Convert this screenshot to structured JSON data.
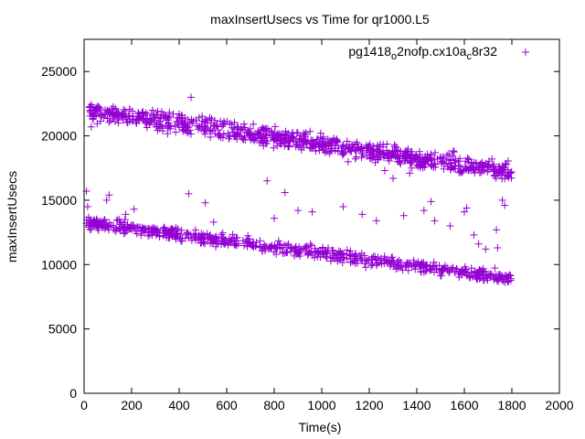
{
  "chart_data": {
    "type": "scatter",
    "title": "maxInsertUsecs vs Time for qr1000.L5",
    "xlabel": "Time(s)",
    "ylabel": "maxInsertUsecs",
    "xlim": [
      0,
      2000
    ],
    "ylim": [
      0,
      27500
    ],
    "xticks": [
      0,
      200,
      400,
      600,
      800,
      1000,
      1200,
      1400,
      1600,
      1800,
      2000
    ],
    "yticks": [
      0,
      5000,
      10000,
      15000,
      20000,
      25000
    ],
    "grid": false,
    "legend": "top-right",
    "marker": "plus",
    "series": [
      {
        "name_main": "pg1418",
        "name_sub1": "o",
        "name_mid": "2nofp.cx10a",
        "name_sub2": "c",
        "name_end": "8r32",
        "color": "#9400d3",
        "clusters": [
          {
            "description_level": "upper band",
            "x_start": 20,
            "x_end": 1800,
            "y_start": 22000,
            "y_end": 17200,
            "spread": 700,
            "count": 900
          },
          {
            "description_level": "lower band",
            "x_start": 0,
            "x_end": 1800,
            "y_start": 13300,
            "y_end": 8900,
            "spread": 450,
            "count": 700
          }
        ],
        "outliers": [
          [
            10,
            15700
          ],
          [
            15,
            14500
          ],
          [
            30,
            20700
          ],
          [
            95,
            15000
          ],
          [
            105,
            15400
          ],
          [
            175,
            13900
          ],
          [
            210,
            14300
          ],
          [
            440,
            15500
          ],
          [
            450,
            23000
          ],
          [
            470,
            12400
          ],
          [
            510,
            14800
          ],
          [
            545,
            13300
          ],
          [
            770,
            16500
          ],
          [
            800,
            13600
          ],
          [
            845,
            15600
          ],
          [
            900,
            14200
          ],
          [
            960,
            14100
          ],
          [
            1090,
            14500
          ],
          [
            1170,
            13900
          ],
          [
            1230,
            13400
          ],
          [
            1265,
            17300
          ],
          [
            1300,
            16700
          ],
          [
            1345,
            13800
          ],
          [
            1370,
            17100
          ],
          [
            1430,
            14200
          ],
          [
            1460,
            14900
          ],
          [
            1475,
            13400
          ],
          [
            1540,
            13000
          ],
          [
            1600,
            14100
          ],
          [
            1610,
            14400
          ],
          [
            1640,
            12300
          ],
          [
            1660,
            11600
          ],
          [
            1690,
            11200
          ],
          [
            1735,
            12700
          ],
          [
            1740,
            11300
          ],
          [
            1760,
            15000
          ],
          [
            1770,
            14600
          ]
        ]
      }
    ]
  }
}
